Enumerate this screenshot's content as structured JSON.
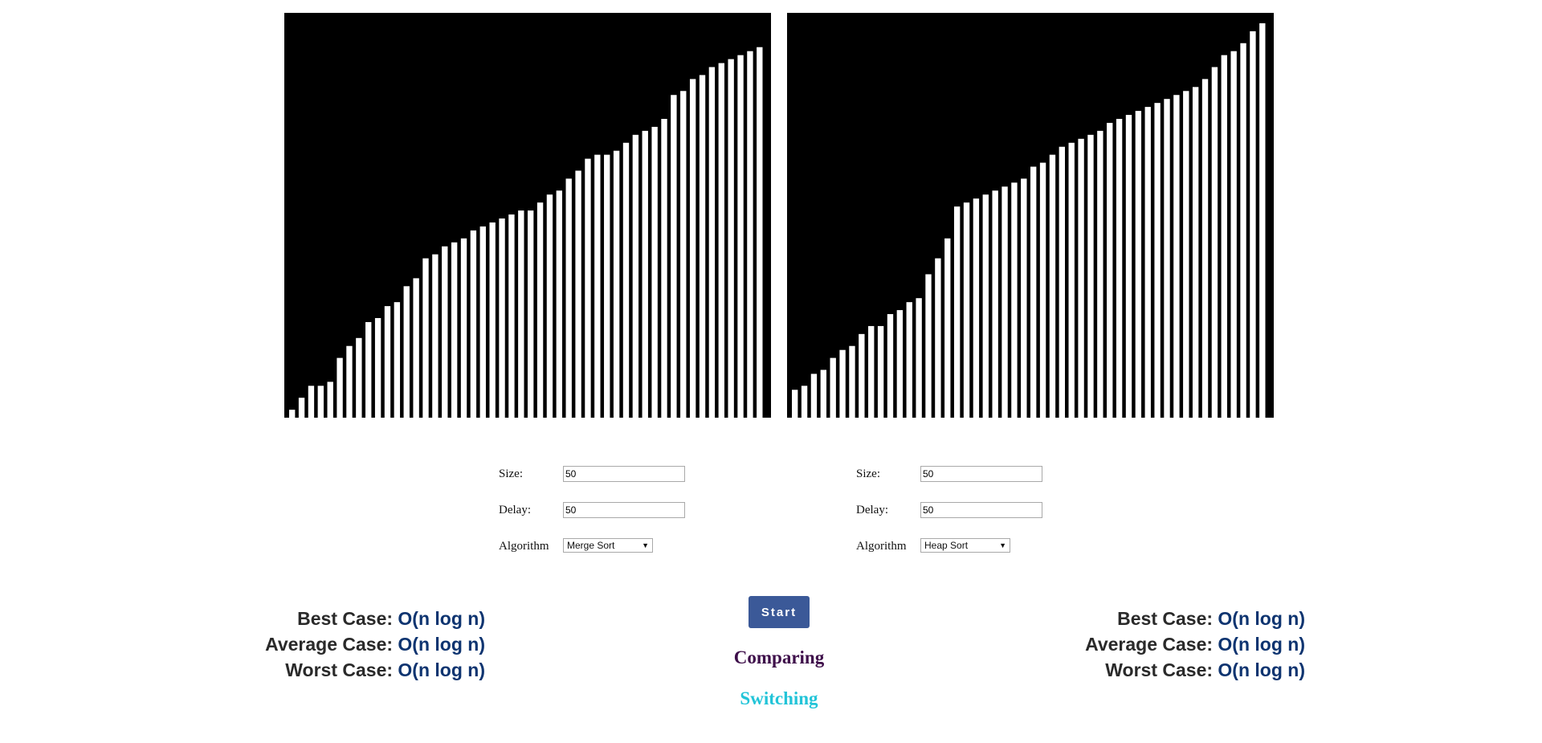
{
  "left_panel": {
    "bars": [
      2,
      5,
      8,
      8,
      9,
      15,
      18,
      20,
      24,
      25,
      28,
      29,
      33,
      35,
      40,
      41,
      43,
      44,
      45,
      47,
      48,
      49,
      50,
      51,
      52,
      52,
      54,
      56,
      57,
      60,
      62,
      65,
      66,
      66,
      67,
      69,
      71,
      72,
      73,
      75,
      81,
      82,
      85,
      86,
      88,
      89,
      90,
      91,
      92,
      93
    ],
    "size_label": "Size:",
    "size_value": "50",
    "delay_label": "Delay:",
    "delay_value": "50",
    "algorithm_label": "Algorithm",
    "algorithm_selected": "Merge Sort",
    "best_case_label": "Best Case:",
    "best_case_value": "O(n log n)",
    "average_case_label": "Average Case:",
    "average_case_value": "O(n log n)",
    "worst_case_label": "Worst Case:",
    "worst_case_value": "O(n log n)"
  },
  "right_panel": {
    "bars": [
      7,
      8,
      11,
      12,
      15,
      17,
      18,
      21,
      23,
      23,
      26,
      27,
      29,
      30,
      36,
      40,
      45,
      53,
      54,
      55,
      56,
      57,
      58,
      59,
      60,
      63,
      64,
      66,
      68,
      69,
      70,
      71,
      72,
      74,
      75,
      76,
      77,
      78,
      79,
      80,
      81,
      82,
      83,
      85,
      88,
      91,
      92,
      94,
      97,
      99
    ],
    "size_label": "Size:",
    "size_value": "50",
    "delay_label": "Delay:",
    "delay_value": "50",
    "algorithm_label": "Algorithm",
    "algorithm_selected": "Heap Sort",
    "best_case_label": "Best Case:",
    "best_case_value": "O(n log n)",
    "average_case_label": "Average Case:",
    "average_case_value": "O(n log n)",
    "worst_case_label": "Worst Case:",
    "worst_case_value": "O(n log n)"
  },
  "start_label": "Start",
  "comparing_label": "Comparing",
  "switching_label": "Switching",
  "colors": {
    "canvas_bg": "#000000",
    "bar": "#ffffff",
    "start_button": "#3b5998",
    "comparing": "#3e0f4a",
    "switching": "#22c4d8",
    "complexity_value": "#0e3470"
  }
}
